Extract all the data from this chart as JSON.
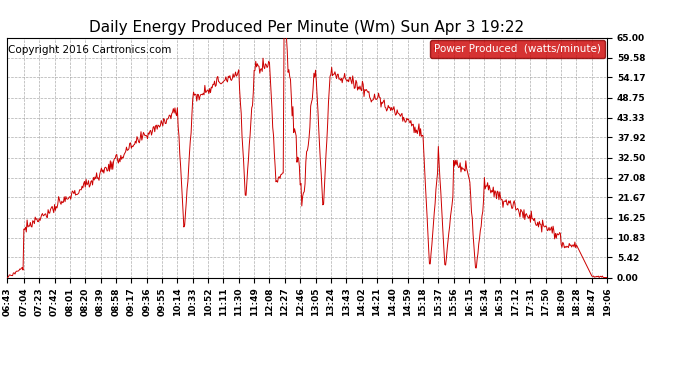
{
  "title": "Daily Energy Produced Per Minute (Wm) Sun Apr 3 19:22",
  "copyright": "Copyright 2016 Cartronics.com",
  "legend_label": "Power Produced  (watts/minute)",
  "legend_bg": "#cc0000",
  "legend_text_color": "#ffffff",
  "line_color": "#cc0000",
  "bg_color": "#ffffff",
  "plot_bg_color": "#ffffff",
  "grid_color": "#999999",
  "ymin": 0.0,
  "ymax": 65.0,
  "yticks": [
    0.0,
    5.42,
    10.83,
    16.25,
    21.67,
    27.08,
    32.5,
    37.92,
    43.33,
    48.75,
    54.17,
    59.58,
    65.0
  ],
  "xtick_labels": [
    "06:43",
    "07:04",
    "07:23",
    "07:42",
    "08:01",
    "08:20",
    "08:39",
    "08:58",
    "09:17",
    "09:36",
    "09:55",
    "10:14",
    "10:33",
    "10:52",
    "11:11",
    "11:30",
    "11:49",
    "12:08",
    "12:27",
    "12:46",
    "13:05",
    "13:24",
    "13:43",
    "14:02",
    "14:21",
    "14:40",
    "14:59",
    "15:18",
    "15:37",
    "15:56",
    "16:15",
    "16:34",
    "16:53",
    "17:12",
    "17:31",
    "17:50",
    "18:09",
    "18:28",
    "18:47",
    "19:06"
  ],
  "title_fontsize": 11,
  "tick_fontsize": 6.5,
  "copyright_fontsize": 7.5
}
